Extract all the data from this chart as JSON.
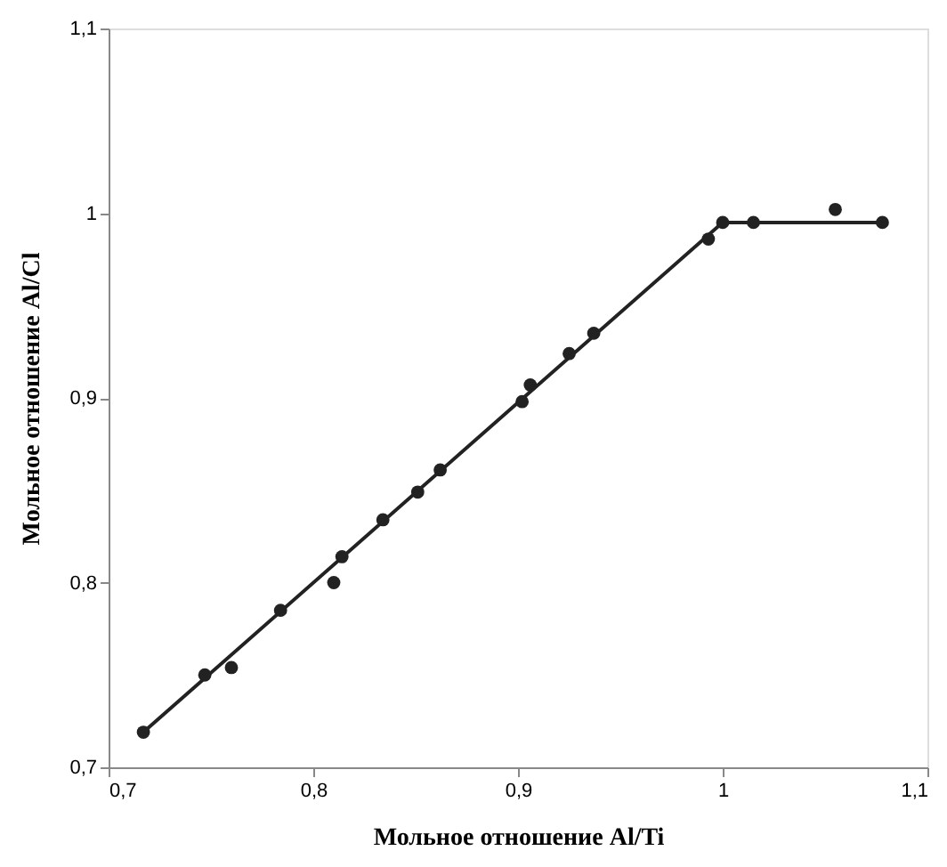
{
  "chart_data": {
    "type": "scatter",
    "xlabel": "Мольное отношение Al/Ti",
    "ylabel": "Мольное отношение Al/Cl",
    "xlim": [
      0.7,
      1.1
    ],
    "ylim": [
      0.7,
      1.1
    ],
    "xticks": [
      {
        "value": 0.7,
        "label": "0,7"
      },
      {
        "value": 0.8,
        "label": "0,8"
      },
      {
        "value": 0.9,
        "label": "0,9"
      },
      {
        "value": 1,
        "label": "1"
      },
      {
        "value": 1.1,
        "label": "1,1"
      }
    ],
    "yticks": [
      {
        "value": 0.7,
        "label": "0,7"
      },
      {
        "value": 0.8,
        "label": "0,8"
      },
      {
        "value": 0.9,
        "label": "0,9"
      },
      {
        "value": 1,
        "label": "1"
      },
      {
        "value": 1.1,
        "label": "1,1"
      }
    ],
    "grid": false,
    "series": [
      {
        "color": "#222222",
        "marker": "circle",
        "x": [
          0.717,
          0.747,
          0.76,
          0.784,
          0.81,
          0.814,
          0.834,
          0.851,
          0.862,
          0.902,
          0.906,
          0.925,
          0.937,
          0.993,
          1.0,
          1.015,
          1.055,
          1.078
        ],
        "values": [
          0.719,
          0.75,
          0.754,
          0.785,
          0.8,
          0.814,
          0.834,
          0.849,
          0.861,
          0.898,
          0.907,
          0.924,
          0.935,
          0.986,
          0.995,
          0.995,
          1.002,
          0.995
        ]
      },
      {
        "type": "line",
        "color": "#222222",
        "marker": "none",
        "line_style": "solid",
        "x": [
          0.717,
          1.0,
          1.078
        ],
        "values": [
          0.719,
          0.995,
          0.995
        ]
      }
    ]
  }
}
